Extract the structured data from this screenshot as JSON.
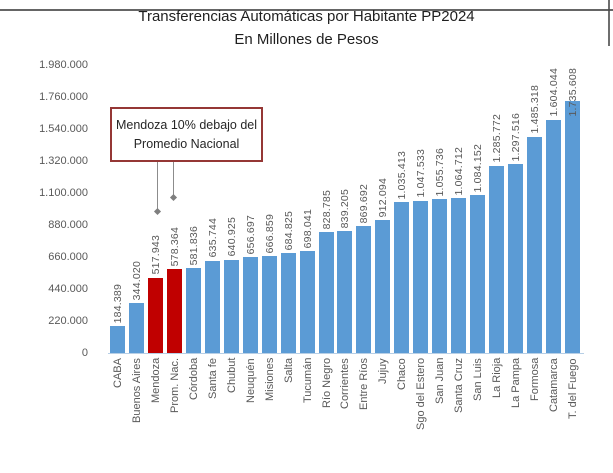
{
  "title": "Transferencias Automáticas por Habitante  PP2024",
  "subtitle": "En Millones de Pesos",
  "annotation": {
    "line1": "Mendoza 10% debajo del",
    "line2": "Promedio Nacional"
  },
  "chart_data": {
    "type": "bar",
    "title": "Transferencias Automáticas por Habitante  PP2024",
    "subtitle": "En Millones de Pesos",
    "categories": [
      "CABA",
      "Buenos Aires",
      "Mendoza",
      "Prom. Nac.",
      "Córdoba",
      "Santa fe",
      "Chubut",
      "Neuquén",
      "Misiones",
      "Salta",
      "Tucumán",
      "Río Negro",
      "Corrientes",
      "Entre Ríos",
      "Jujuy",
      "Chaco",
      "Sgo del Estero",
      "San Juan",
      "Santa Cruz",
      "San Luis",
      "La Rioja",
      "La Pampa",
      "Formosa",
      "Catamarca",
      "T. del Fuego"
    ],
    "values": [
      184389,
      344020,
      517943,
      578364,
      581836,
      635744,
      640925,
      656697,
      666859,
      684825,
      698041,
      828785,
      839205,
      869692,
      912094,
      1035413,
      1047533,
      1055736,
      1064712,
      1084152,
      1285772,
      1297516,
      1485318,
      1604044,
      1735608
    ],
    "value_labels": [
      "184.389",
      "344.020",
      "517.943",
      "578.364",
      "581.836",
      "635.744",
      "640.925",
      "656.697",
      "666.859",
      "684.825",
      "698.041",
      "828.785",
      "839.205",
      "869.692",
      "912.094",
      "1.035.413",
      "1.047.533",
      "1.055.736",
      "1.064.712",
      "1.084.152",
      "1.285.772",
      "1.297.516",
      "1.485.318",
      "1.604.044",
      "1.735.608"
    ],
    "y_ticks": [
      "1.980.000",
      "1.760.000",
      "1.540.000",
      "1.320.000",
      "1.100.000",
      "880.000",
      "660.000",
      "440.000",
      "220.000",
      "0"
    ],
    "ylim": [
      0,
      1980000
    ],
    "xlabel": "",
    "ylabel": "",
    "grid": false,
    "legend": false,
    "bar_color": "#5b9bd5",
    "highlight_color": "#c00000",
    "highlight_indices": [
      2,
      3
    ],
    "inside_label_indices": [
      24
    ],
    "label_color": "#595959",
    "axis_line_color": "#b7cfe6"
  }
}
